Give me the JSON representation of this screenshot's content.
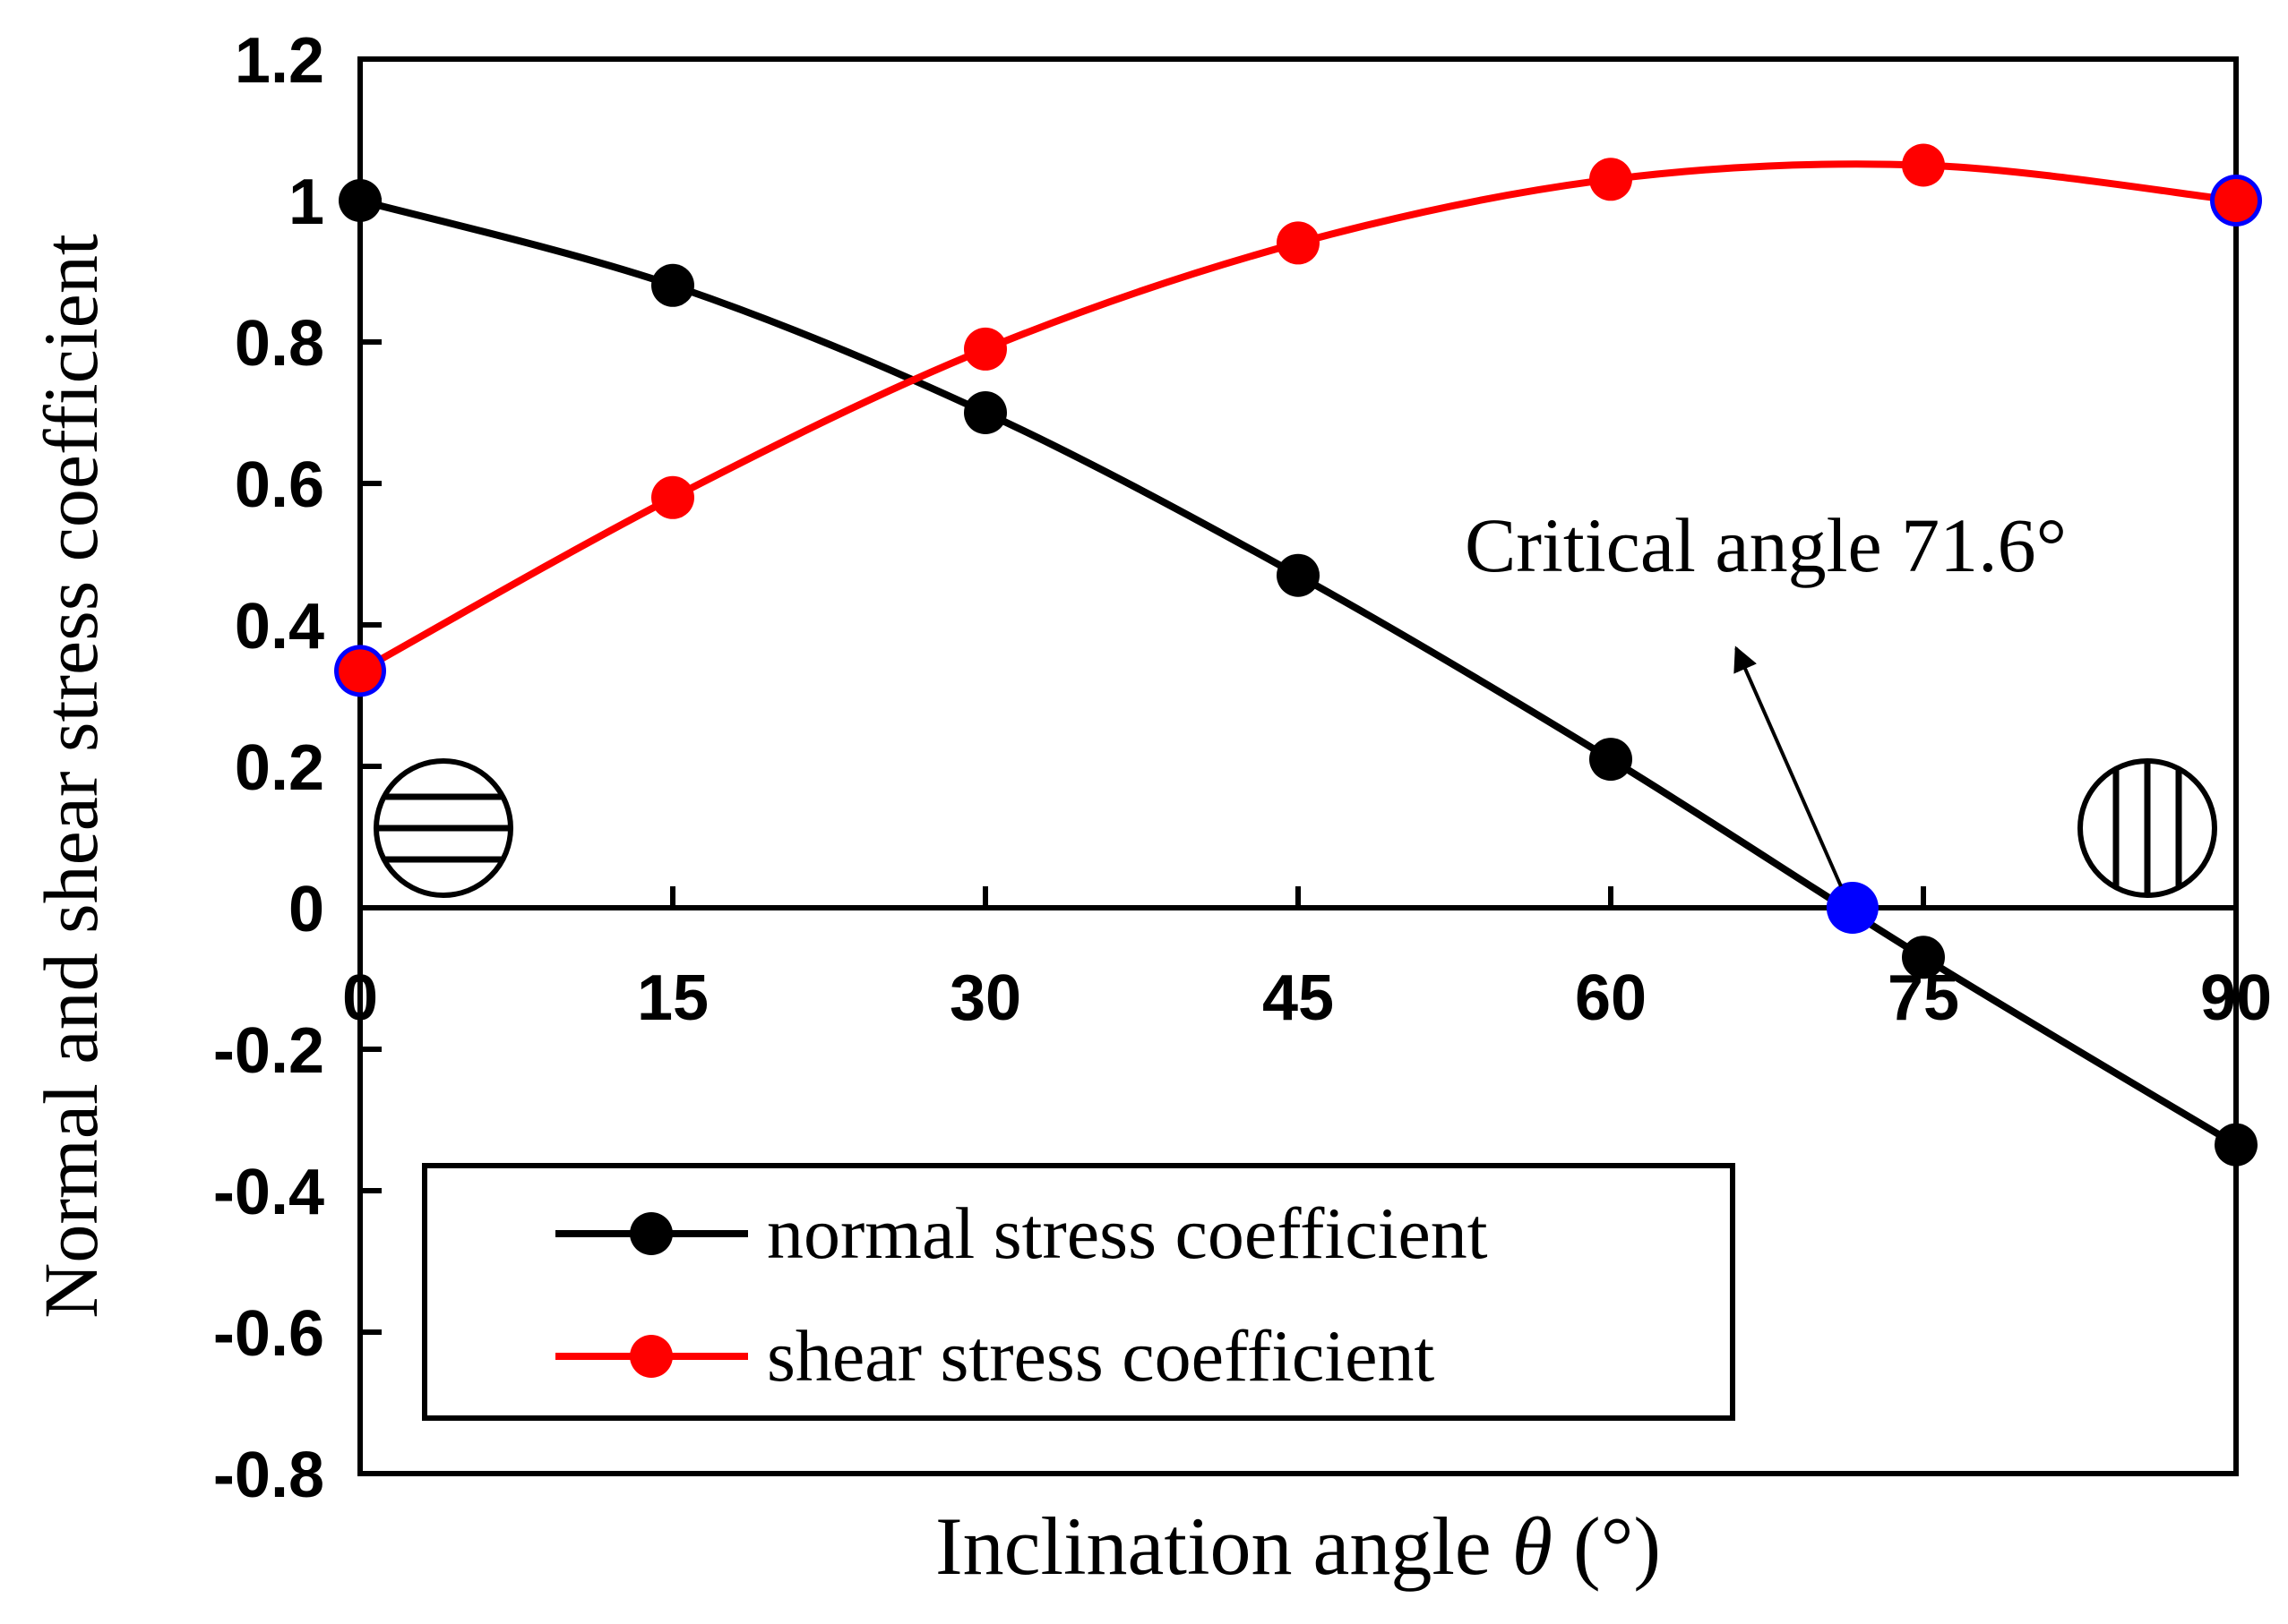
{
  "chart_data": {
    "type": "line",
    "title": "",
    "xlabel_prefix": "Inclination angle ",
    "xlabel_symbol": "θ",
    "xlabel_suffix": " (°)",
    "ylabel": "Normal and shear stress coefficient",
    "x": [
      0,
      15,
      30,
      45,
      60,
      75,
      90
    ],
    "x_ticks": [
      "0",
      "15",
      "30",
      "45",
      "60",
      "75",
      "90"
    ],
    "y_ticks": [
      "1.2",
      "1",
      "0.8",
      "0.6",
      "0.4",
      "0.2",
      "0",
      "-0.2",
      "-0.4",
      "-0.6",
      "-0.8"
    ],
    "xlim": [
      0,
      90
    ],
    "ylim": [
      -0.8,
      1.2
    ],
    "grid": false,
    "legend_position": "bottom-left",
    "series": [
      {
        "name": "normal stress coefficient",
        "color": "#000000",
        "values": [
          1.0,
          0.88,
          0.7,
          0.47,
          0.21,
          -0.07,
          -0.335
        ]
      },
      {
        "name": "shear stress coefficient",
        "color": "#ff0000",
        "values": [
          0.335,
          0.58,
          0.79,
          0.94,
          1.03,
          1.05,
          1.0
        ]
      }
    ],
    "highlight_color": "#0000ff",
    "highlight_points": [
      {
        "x": 0,
        "y": 0.335
      },
      {
        "x": 71.6,
        "y": 0.0
      },
      {
        "x": 90,
        "y": 1.0
      }
    ],
    "annotation": {
      "text": "Critical angle 71.6°",
      "points_to": {
        "x": 71.6,
        "y": 0.0
      }
    },
    "icons": [
      {
        "name": "horizontal-layers-icon",
        "at_x": 0
      },
      {
        "name": "vertical-layers-icon",
        "at_x": 90
      }
    ]
  }
}
